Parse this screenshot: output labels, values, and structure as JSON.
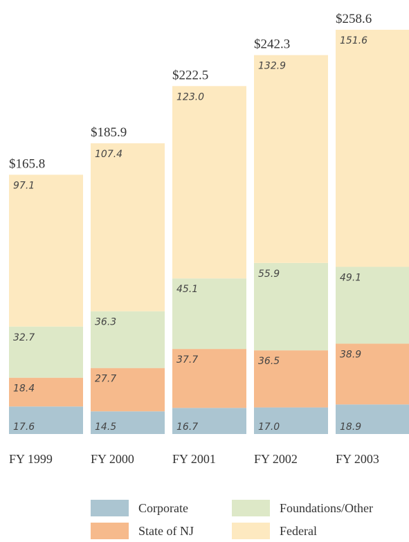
{
  "chart_data": {
    "type": "stacked_bar",
    "categories": [
      "FY 1999",
      "FY 2000",
      "FY 2001",
      "FY 2002",
      "FY 2003"
    ],
    "series": [
      {
        "name": "Corporate",
        "color": "#abc5d1",
        "values": [
          17.6,
          14.5,
          16.7,
          17.0,
          18.9
        ],
        "value_labels": [
          "17.6",
          "14.5",
          "16.7",
          "17.0",
          "18.9"
        ]
      },
      {
        "name": "State of NJ",
        "color": "#f6ba8c",
        "values": [
          18.4,
          27.7,
          37.7,
          36.5,
          38.9
        ],
        "value_labels": [
          "18.4",
          "27.7",
          "37.7",
          "36.5",
          "38.9"
        ]
      },
      {
        "name": "Foundations/Other",
        "color": "#dde8c7",
        "values": [
          32.7,
          36.3,
          45.1,
          55.9,
          49.1
        ],
        "value_labels": [
          "32.7",
          "36.3",
          "45.1",
          "55.9",
          "49.1"
        ]
      },
      {
        "name": "Federal",
        "color": "#fde9c0",
        "values": [
          97.1,
          107.4,
          123.0,
          132.9,
          151.6
        ],
        "value_labels": [
          "97.1",
          "107.4",
          "123.0",
          "132.9",
          "151.6"
        ]
      }
    ],
    "totals": [
      165.8,
      185.9,
      222.5,
      242.3,
      258.6
    ],
    "total_labels": [
      "$165.8",
      "$185.9",
      "$222.5",
      "$242.3",
      "$258.6"
    ]
  }
}
